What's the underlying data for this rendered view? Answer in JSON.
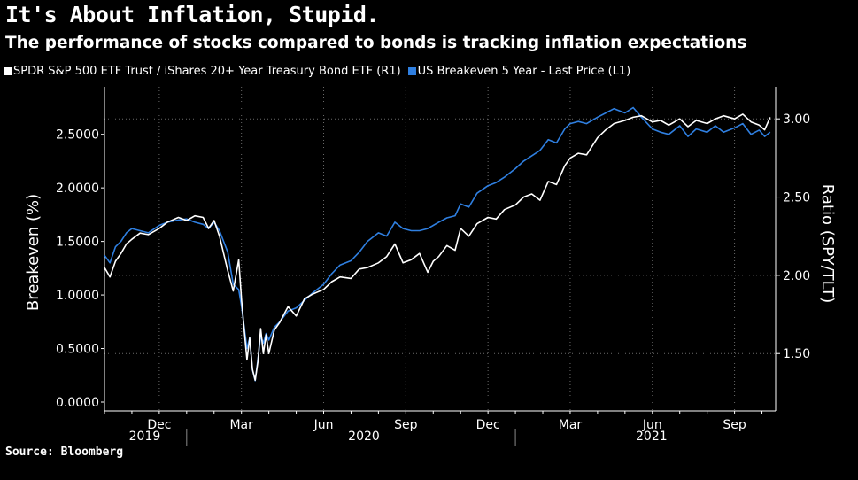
{
  "title": "It's About Inflation, Stupid.",
  "subtitle": "The performance of stocks compared to bonds is tracking inflation expectations",
  "source": "Source: Bloomberg",
  "colors": {
    "background": "#000000",
    "series_ratio": "#ffffff",
    "series_breakeven": "#2f7fe0"
  },
  "chart_data": {
    "type": "line",
    "title": "It's About Inflation, Stupid.",
    "subtitle": "The performance of stocks compared to bonds is tracking inflation expectations",
    "left_axis": {
      "label": "Breakeven (%)",
      "ylim": [
        0,
        2.82
      ],
      "ticks": [
        "0.0000",
        "0.5000",
        "1.0000",
        "1.5000",
        "2.0000",
        "2.5000"
      ],
      "tick_values": [
        0,
        0.5,
        1.0,
        1.5,
        2.0,
        2.5
      ]
    },
    "right_axis": {
      "label": "Ratio (SPY/TLT)",
      "ylim": [
        1.19,
        3.12
      ],
      "ticks": [
        "1.50",
        "2.00",
        "2.50",
        "3.00"
      ],
      "tick_values": [
        1.5,
        2.0,
        2.5,
        3.0
      ]
    },
    "x_month_labels": [
      "Dec",
      "Mar",
      "Jun",
      "Sep",
      "Dec",
      "Mar",
      "Jun",
      "Sep"
    ],
    "x_month_index": [
      2,
      5,
      8,
      11,
      14,
      17,
      20,
      23
    ],
    "x_year_labels": [
      "2019",
      "2020",
      "2021"
    ],
    "x_year_center": [
      0.5,
      8.5,
      19.0
    ],
    "x_year_separators": [
      3.0,
      15.0
    ],
    "x_range": [
      0.0,
      24.5
    ],
    "series": [
      {
        "name": "SPDR S&P 500 ETF Trust / iShares 20+ Year Treasury Bond ETF (R1)",
        "axis": "right",
        "x": [
          0.0,
          0.2,
          0.4,
          0.6,
          0.8,
          1.0,
          1.3,
          1.6,
          2.0,
          2.3,
          2.7,
          3.0,
          3.3,
          3.6,
          3.8,
          4.0,
          4.2,
          4.5,
          4.7,
          4.9,
          5.0,
          5.1,
          5.2,
          5.3,
          5.4,
          5.5,
          5.6,
          5.7,
          5.8,
          5.9,
          6.0,
          6.2,
          6.4,
          6.7,
          7.0,
          7.3,
          7.6,
          8.0,
          8.3,
          8.6,
          9.0,
          9.3,
          9.6,
          10.0,
          10.3,
          10.6,
          10.9,
          11.2,
          11.5,
          11.8,
          12.0,
          12.2,
          12.5,
          12.8,
          13.0,
          13.3,
          13.6,
          14.0,
          14.3,
          14.6,
          15.0,
          15.3,
          15.6,
          15.9,
          16.2,
          16.5,
          16.8,
          17.0,
          17.3,
          17.6,
          18.0,
          18.3,
          18.6,
          19.0,
          19.3,
          19.6,
          20.0,
          20.3,
          20.6,
          21.0,
          21.3,
          21.6,
          22.0,
          22.3,
          22.6,
          23.0,
          23.3,
          23.6,
          23.9,
          24.1,
          24.3
        ],
        "values": [
          2.05,
          1.99,
          2.09,
          2.14,
          2.2,
          2.23,
          2.27,
          2.26,
          2.3,
          2.34,
          2.37,
          2.35,
          2.38,
          2.37,
          2.3,
          2.35,
          2.25,
          2.03,
          1.9,
          2.1,
          1.85,
          1.65,
          1.46,
          1.6,
          1.4,
          1.33,
          1.45,
          1.66,
          1.5,
          1.62,
          1.5,
          1.65,
          1.7,
          1.8,
          1.74,
          1.85,
          1.88,
          1.91,
          1.96,
          1.99,
          1.98,
          2.04,
          2.05,
          2.08,
          2.12,
          2.2,
          2.08,
          2.1,
          2.14,
          2.02,
          2.09,
          2.12,
          2.19,
          2.16,
          2.3,
          2.25,
          2.33,
          2.37,
          2.36,
          2.42,
          2.45,
          2.5,
          2.52,
          2.48,
          2.6,
          2.58,
          2.7,
          2.75,
          2.78,
          2.77,
          2.88,
          2.93,
          2.97,
          2.99,
          3.01,
          3.02,
          2.98,
          2.99,
          2.96,
          3.0,
          2.95,
          2.99,
          2.97,
          3.0,
          3.02,
          3.0,
          3.03,
          2.98,
          2.96,
          2.93,
          3.01
        ]
      },
      {
        "name": "US Breakeven 5 Year - Last Price (L1)",
        "axis": "left",
        "x": [
          0.0,
          0.2,
          0.4,
          0.6,
          0.8,
          1.0,
          1.3,
          1.6,
          2.0,
          2.3,
          2.7,
          3.0,
          3.3,
          3.6,
          3.8,
          4.0,
          4.2,
          4.5,
          4.7,
          4.9,
          5.0,
          5.1,
          5.2,
          5.3,
          5.4,
          5.5,
          5.6,
          5.7,
          5.8,
          5.9,
          6.0,
          6.2,
          6.4,
          6.7,
          7.0,
          7.3,
          7.6,
          8.0,
          8.3,
          8.6,
          9.0,
          9.3,
          9.6,
          10.0,
          10.3,
          10.6,
          10.9,
          11.2,
          11.5,
          11.8,
          12.0,
          12.2,
          12.5,
          12.8,
          13.0,
          13.3,
          13.6,
          14.0,
          14.3,
          14.6,
          15.0,
          15.3,
          15.6,
          15.9,
          16.2,
          16.5,
          16.8,
          17.0,
          17.3,
          17.6,
          18.0,
          18.3,
          18.6,
          19.0,
          19.3,
          19.6,
          20.0,
          20.3,
          20.6,
          21.0,
          21.3,
          21.6,
          22.0,
          22.3,
          22.6,
          23.0,
          23.3,
          23.6,
          23.9,
          24.1,
          24.3
        ],
        "values": [
          1.37,
          1.3,
          1.45,
          1.5,
          1.58,
          1.62,
          1.6,
          1.58,
          1.65,
          1.68,
          1.7,
          1.71,
          1.68,
          1.66,
          1.62,
          1.68,
          1.6,
          1.4,
          1.1,
          1.05,
          0.9,
          0.7,
          0.5,
          0.6,
          0.3,
          0.2,
          0.4,
          0.62,
          0.55,
          0.64,
          0.58,
          0.7,
          0.75,
          0.85,
          0.88,
          0.95,
          1.02,
          1.1,
          1.2,
          1.28,
          1.32,
          1.4,
          1.5,
          1.58,
          1.55,
          1.68,
          1.62,
          1.6,
          1.6,
          1.62,
          1.65,
          1.68,
          1.72,
          1.74,
          1.85,
          1.82,
          1.95,
          2.02,
          2.05,
          2.1,
          2.18,
          2.25,
          2.3,
          2.35,
          2.45,
          2.42,
          2.55,
          2.6,
          2.62,
          2.6,
          2.66,
          2.7,
          2.74,
          2.7,
          2.75,
          2.66,
          2.55,
          2.52,
          2.5,
          2.58,
          2.48,
          2.55,
          2.52,
          2.58,
          2.52,
          2.56,
          2.6,
          2.5,
          2.54,
          2.48,
          2.52
        ]
      }
    ]
  }
}
